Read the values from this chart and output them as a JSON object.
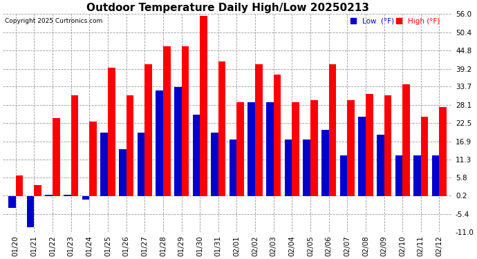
{
  "title": "Outdoor Temperature Daily High/Low 20250213",
  "copyright": "Copyright 2025 Curtronics.com",
  "legend_low": "Low  (°F)",
  "legend_high": "High (°F)",
  "dates": [
    "01/20",
    "01/21",
    "01/22",
    "01/23",
    "01/24",
    "01/25",
    "01/26",
    "01/27",
    "01/28",
    "01/29",
    "01/30",
    "01/31",
    "02/01",
    "02/02",
    "02/03",
    "02/04",
    "02/05",
    "02/06",
    "02/07",
    "02/08",
    "02/09",
    "02/10",
    "02/11",
    "02/12"
  ],
  "highs": [
    6.5,
    3.5,
    24.0,
    31.0,
    23.0,
    39.5,
    31.0,
    40.5,
    46.0,
    46.0,
    55.5,
    41.5,
    29.0,
    40.5,
    37.5,
    29.0,
    29.5,
    40.5,
    29.5,
    31.5,
    31.0,
    34.5,
    24.5,
    27.5
  ],
  "lows": [
    -3.5,
    -9.5,
    0.5,
    0.5,
    -1.0,
    19.5,
    14.5,
    19.5,
    32.5,
    33.5,
    25.0,
    19.5,
    17.5,
    29.0,
    29.0,
    17.5,
    17.5,
    20.5,
    12.5,
    24.5,
    19.0,
    12.5,
    12.5,
    12.5
  ],
  "high_color": "#ff0000",
  "low_color": "#0000cc",
  "background_color": "#ffffff",
  "ylim": [
    -11.0,
    56.0
  ],
  "yticks": [
    -11.0,
    -5.4,
    0.2,
    5.8,
    11.3,
    16.9,
    22.5,
    28.1,
    33.7,
    39.2,
    44.8,
    50.4,
    56.0
  ],
  "title_fontsize": 11,
  "label_fontsize": 7.5,
  "bar_width": 0.4
}
